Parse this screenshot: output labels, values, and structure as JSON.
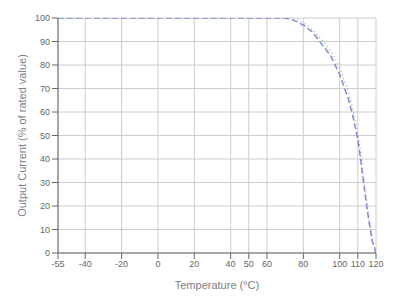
{
  "chart_data": {
    "type": "line",
    "xlabel": "Temperature (°C)",
    "ylabel": "Output Current (% of rated value)",
    "x": [
      -55,
      0,
      50,
      60,
      70,
      75,
      80,
      85,
      90,
      95,
      100,
      105,
      107,
      109,
      110,
      111,
      112,
      114,
      116,
      118,
      120
    ],
    "series": [
      {
        "color": "#82ca9d",
        "line_style": "dotted",
        "values": [
          100,
          100,
          100,
          100,
          100,
          100,
          98,
          95,
          91,
          86,
          79,
          68,
          62,
          55,
          51,
          46,
          40,
          27,
          16,
          6,
          0
        ]
      },
      {
        "color": "#8884d8",
        "line_style": "dashed",
        "values": [
          100,
          100,
          100,
          100,
          100,
          99,
          97,
          94,
          89,
          84,
          76,
          65,
          59,
          52,
          48,
          43,
          37,
          25,
          14,
          5,
          0
        ]
      }
    ],
    "xlim": [
      -55,
      120
    ],
    "ylim": [
      0,
      100
    ],
    "xticks": [
      -55,
      -40,
      -20,
      0,
      20,
      40,
      50,
      60,
      80,
      100,
      110,
      120
    ],
    "yticks": [
      0,
      10,
      20,
      30,
      40,
      50,
      60,
      70,
      80,
      90,
      100
    ],
    "grid": true
  }
}
